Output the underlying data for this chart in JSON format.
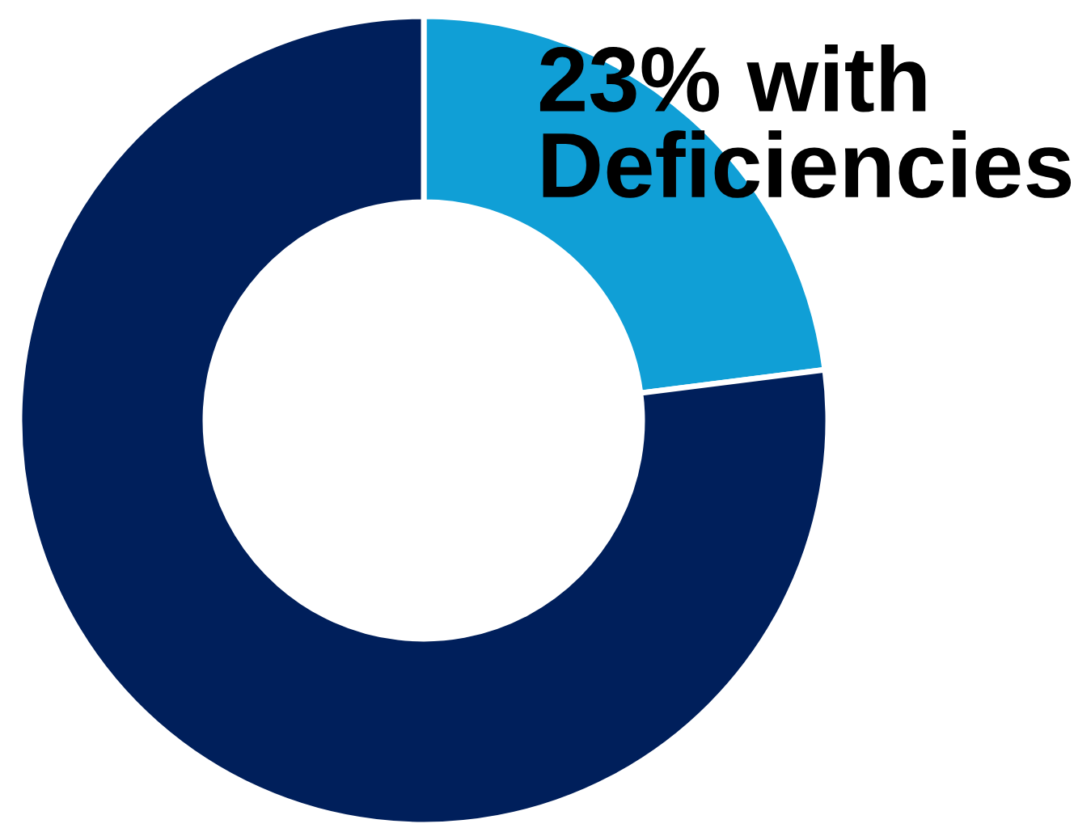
{
  "chart_data": {
    "type": "donut",
    "categories": [
      "23% with\nDeficiencies",
      null
    ],
    "values": [
      23,
      77
    ],
    "colors": [
      "#109fd6",
      "#001f5b"
    ]
  }
}
